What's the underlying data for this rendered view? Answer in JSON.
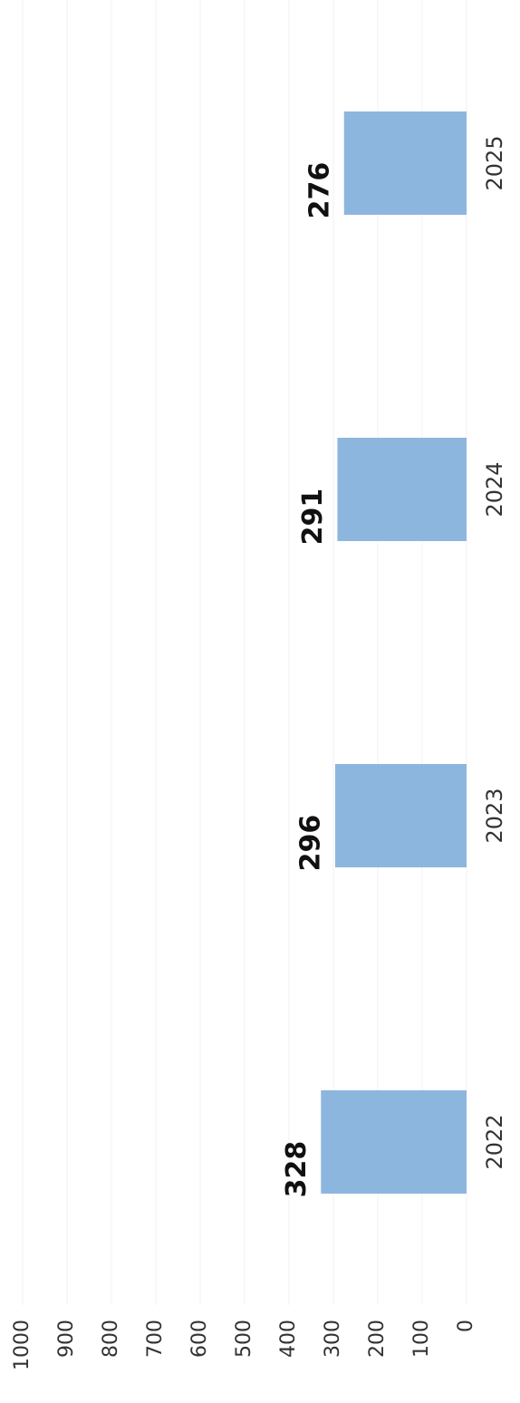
{
  "chart_data": {
    "type": "bar",
    "orientation": "rotated",
    "categories": [
      "2022",
      "2023",
      "2024",
      "2025"
    ],
    "values": [
      328,
      296,
      291,
      276
    ],
    "color": "#8db6df",
    "ylim": [
      0,
      1000
    ],
    "yticks": [
      0,
      100,
      200,
      300,
      400,
      500,
      600,
      700,
      800,
      900,
      1000
    ],
    "grid": true
  }
}
